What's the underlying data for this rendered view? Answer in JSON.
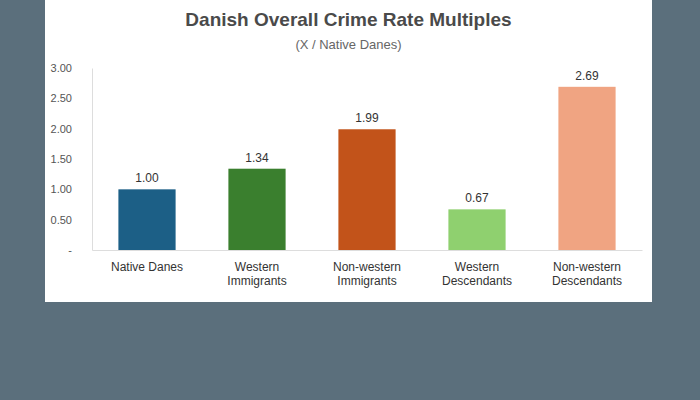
{
  "chart_data": {
    "type": "bar",
    "title": "Danish Overall Crime Rate Multiples",
    "subtitle": "(X / Native Danes)",
    "categories": [
      "Native Danes",
      "Western Immigrants",
      "Non-western Immigrants",
      "Western Descendants",
      "Non-western Descendants"
    ],
    "values": [
      1.0,
      1.34,
      1.99,
      0.67,
      2.69
    ],
    "value_labels": [
      "1.00",
      "1.34",
      "1.99",
      "0.67",
      "2.69"
    ],
    "colors": [
      "#1c5f86",
      "#3a7f2e",
      "#c2531a",
      "#8fd06f",
      "#f0a482"
    ],
    "ylim": [
      0,
      3
    ],
    "yticks": [
      {
        "value": 0,
        "label": "-"
      },
      {
        "value": 0.5,
        "label": "0.50"
      },
      {
        "value": 1,
        "label": "1.00"
      },
      {
        "value": 1.5,
        "label": "1.50"
      },
      {
        "value": 2,
        "label": "2.00"
      },
      {
        "value": 2.5,
        "label": "2.50"
      },
      {
        "value": 3,
        "label": "3.00"
      }
    ],
    "grid": false,
    "data_labels": true
  }
}
